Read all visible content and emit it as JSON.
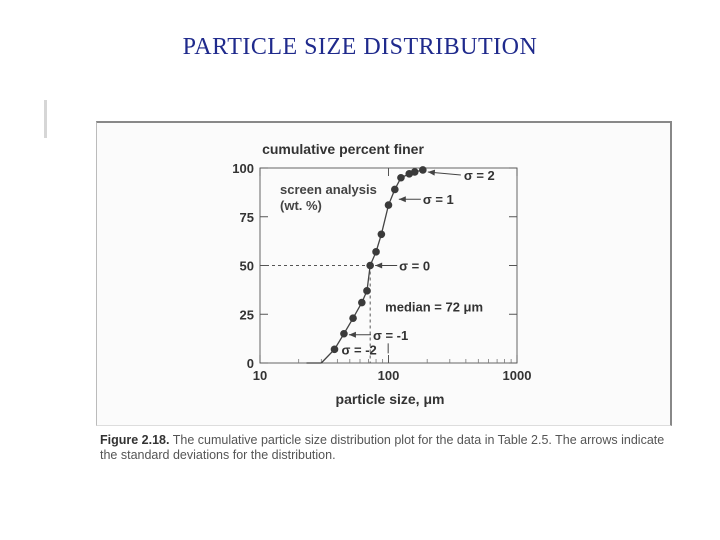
{
  "page": {
    "title": "PARTICLE SIZE DISTRIBUTION"
  },
  "figure": {
    "caption_label": "Figure 2.18.",
    "caption_text": "The cumulative particle size distribution plot for the data in Table 2.5. The arrows indicate the standard deviations for the distribution."
  },
  "chart_data": {
    "type": "scatter",
    "title": "cumulative percent finer",
    "xlabel": "particle size, μm",
    "ylabel": "",
    "xscale": "log",
    "xlim": [
      10,
      1000
    ],
    "ylim": [
      0,
      100
    ],
    "x_ticks": [
      "10",
      "100",
      "1000"
    ],
    "y_ticks": [
      "0",
      "25",
      "50",
      "75",
      "100"
    ],
    "grid": false,
    "series": [
      {
        "name": "screen analysis (wt. %)",
        "x": [
          38,
          45,
          53,
          62,
          68,
          72,
          80,
          88,
          100,
          112,
          125,
          145,
          160,
          185
        ],
        "y": [
          7,
          15,
          23,
          31,
          37,
          50,
          57,
          66,
          81,
          89,
          95,
          97,
          98,
          99
        ]
      }
    ],
    "annotations": [
      {
        "text": "σ = 2",
        "x": 185,
        "y": 99
      },
      {
        "text": "σ = 1",
        "x": 112,
        "y": 84
      },
      {
        "text": "σ = 0",
        "x": 72,
        "y": 50
      },
      {
        "text": "median = 72 μm",
        "x": 72,
        "y": 29
      },
      {
        "text": "σ = -1",
        "x": 45,
        "y": 15
      },
      {
        "text": "σ = -2",
        "x": 38,
        "y": 7
      }
    ],
    "label_series": "screen analysis\n(wt. %)"
  }
}
